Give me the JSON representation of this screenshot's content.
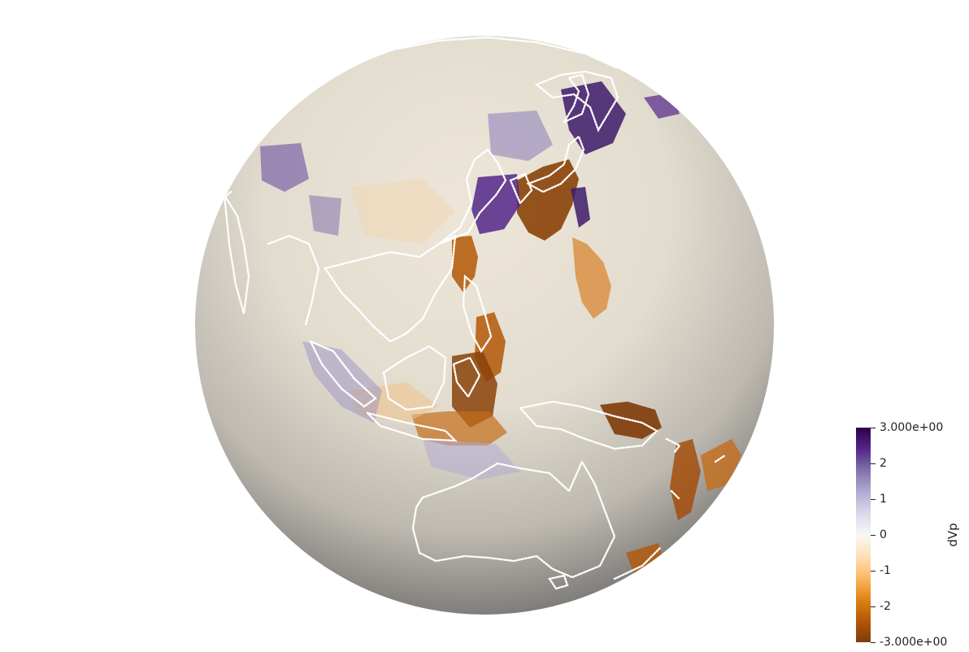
{
  "scene": {
    "background_color": "#ffffff",
    "coastline_color": "#ffffff",
    "globe_base_color": "#e6e0d2",
    "globe_shadow_color": "#4a4a4c"
  },
  "colorbar": {
    "title": "dVp",
    "range": [
      -3.0,
      3.0
    ],
    "max_label": "3.000e+00",
    "min_label": "-3.000e+00",
    "tick_labels": [
      "2",
      "1",
      "0",
      "-1",
      "-2"
    ],
    "tick_values": [
      2,
      1,
      0,
      -1,
      -2
    ],
    "colormap": "PuOr",
    "color_stops": [
      "#7f3b08",
      "#b35806",
      "#e08214",
      "#fdb863",
      "#fee0b6",
      "#f7f7f7",
      "#d8daeb",
      "#b2abd2",
      "#8073ac",
      "#542788",
      "#2d004b"
    ]
  }
}
